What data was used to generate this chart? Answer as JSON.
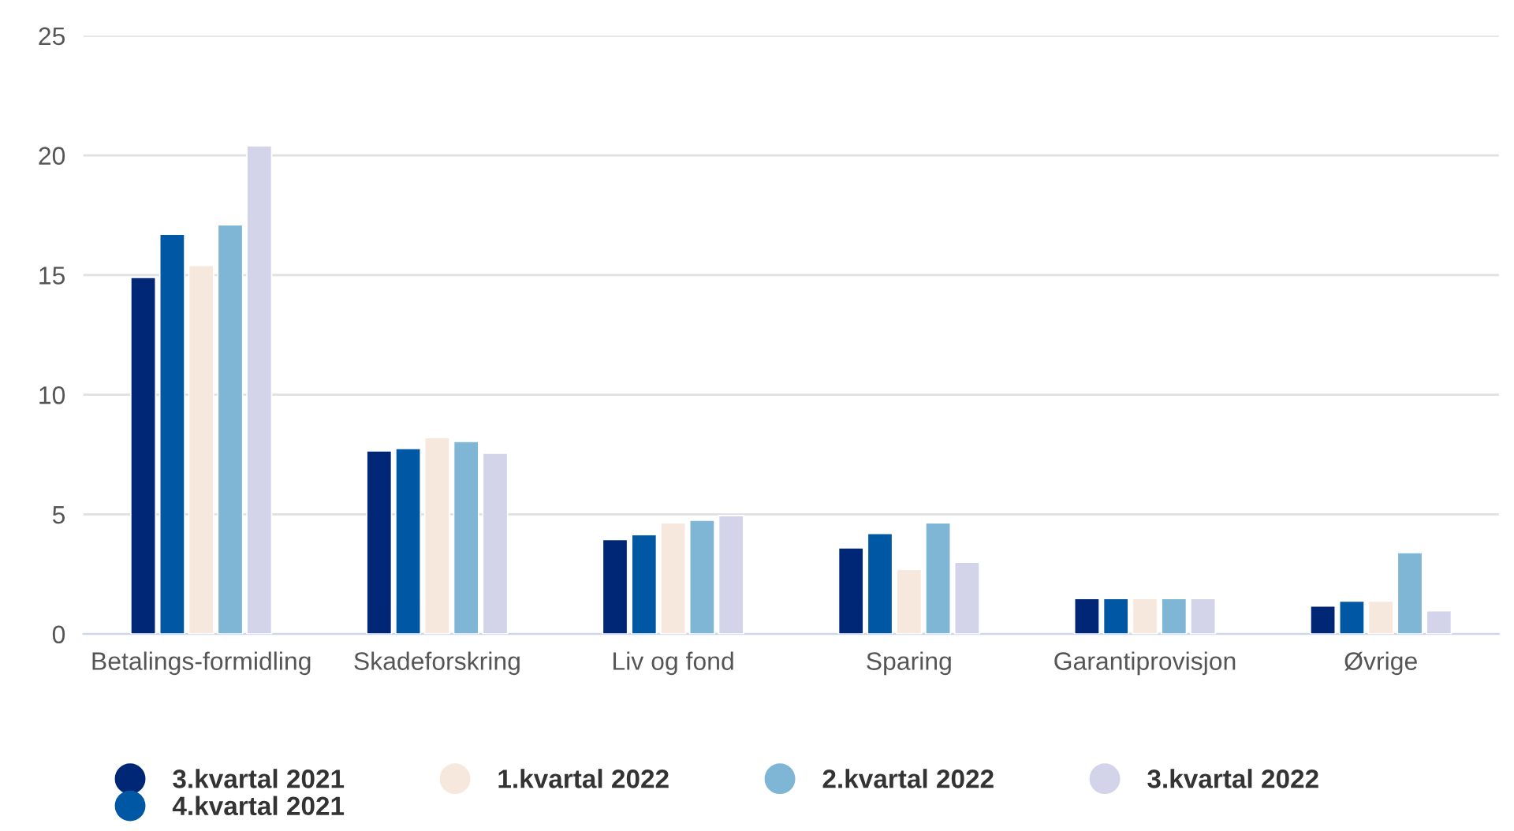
{
  "chart_data": {
    "type": "bar",
    "categories": [
      "Betalings-formidling",
      "Skadeforskring",
      "Liv og fond",
      "Sparing",
      "Garantiprovisjon",
      "Øvrige"
    ],
    "series": [
      {
        "name": "3.kvartal 2021",
        "color": "#002776",
        "values": [
          14.9,
          7.65,
          3.95,
          3.6,
          1.48,
          1.17
        ]
      },
      {
        "name": "4.kvartal 2021",
        "color": "#0057a3",
        "values": [
          16.7,
          7.75,
          4.15,
          4.2,
          1.48,
          1.38
        ]
      },
      {
        "name": "1.kvartal 2022",
        "color": "#f6e8dc",
        "values": [
          15.4,
          8.2,
          4.65,
          2.7,
          1.48,
          1.38
        ]
      },
      {
        "name": "2.kvartal 2022",
        "color": "#7fb5d5",
        "values": [
          17.1,
          8.05,
          4.75,
          4.65,
          1.48,
          3.4
        ]
      },
      {
        "name": "3.kvartal 2022",
        "color": "#d3d3ea",
        "values": [
          20.4,
          7.55,
          4.95,
          3.0,
          1.48,
          0.97
        ]
      }
    ],
    "ylim": [
      0,
      25
    ],
    "yticks": [
      0,
      5,
      10,
      15,
      20,
      25
    ],
    "grid": "y",
    "legend": "bottom",
    "marker": "circle"
  }
}
